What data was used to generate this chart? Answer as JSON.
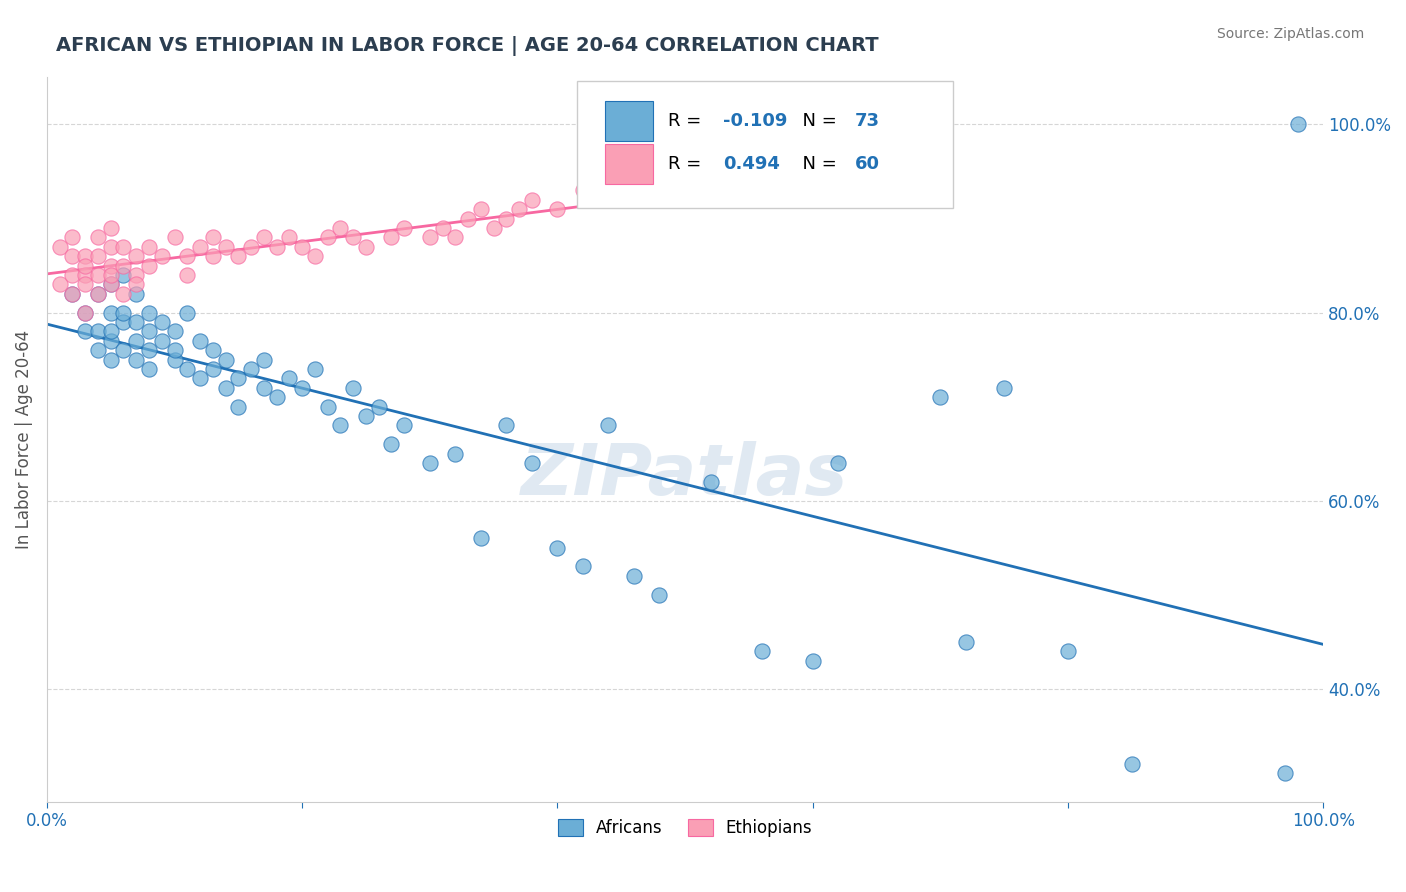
{
  "title": "AFRICAN VS ETHIOPIAN IN LABOR FORCE | AGE 20-64 CORRELATION CHART",
  "source": "Source: ZipAtlas.com",
  "ylabel": "In Labor Force | Age 20-64",
  "xlim": [
    0.0,
    1.0
  ],
  "ylim": [
    0.28,
    1.05
  ],
  "blue_R": "-0.109",
  "blue_N": "73",
  "pink_R": "0.494",
  "pink_N": "60",
  "blue_color": "#6baed6",
  "pink_color": "#fa9fb5",
  "blue_line_color": "#2171b5",
  "pink_line_color": "#f768a1",
  "background_color": "#ffffff",
  "grid_color": "#cccccc",
  "watermark": "ZIPatlas",
  "africans_x": [
    0.02,
    0.03,
    0.03,
    0.04,
    0.04,
    0.04,
    0.05,
    0.05,
    0.05,
    0.05,
    0.05,
    0.06,
    0.06,
    0.06,
    0.06,
    0.07,
    0.07,
    0.07,
    0.07,
    0.08,
    0.08,
    0.08,
    0.08,
    0.09,
    0.09,
    0.1,
    0.1,
    0.1,
    0.11,
    0.11,
    0.12,
    0.12,
    0.13,
    0.13,
    0.14,
    0.14,
    0.15,
    0.15,
    0.16,
    0.17,
    0.17,
    0.18,
    0.19,
    0.2,
    0.21,
    0.22,
    0.23,
    0.24,
    0.25,
    0.26,
    0.27,
    0.28,
    0.3,
    0.32,
    0.34,
    0.36,
    0.38,
    0.4,
    0.42,
    0.44,
    0.46,
    0.48,
    0.52,
    0.56,
    0.6,
    0.62,
    0.7,
    0.72,
    0.75,
    0.8,
    0.85,
    0.97,
    0.98
  ],
  "africans_y": [
    0.82,
    0.8,
    0.78,
    0.78,
    0.76,
    0.82,
    0.77,
    0.8,
    0.78,
    0.75,
    0.83,
    0.79,
    0.76,
    0.8,
    0.84,
    0.77,
    0.75,
    0.79,
    0.82,
    0.78,
    0.76,
    0.8,
    0.74,
    0.77,
    0.79,
    0.75,
    0.78,
    0.76,
    0.74,
    0.8,
    0.73,
    0.77,
    0.74,
    0.76,
    0.72,
    0.75,
    0.73,
    0.7,
    0.74,
    0.72,
    0.75,
    0.71,
    0.73,
    0.72,
    0.74,
    0.7,
    0.68,
    0.72,
    0.69,
    0.7,
    0.66,
    0.68,
    0.64,
    0.65,
    0.56,
    0.68,
    0.64,
    0.55,
    0.53,
    0.68,
    0.52,
    0.5,
    0.62,
    0.44,
    0.43,
    0.64,
    0.71,
    0.45,
    0.72,
    0.44,
    0.32,
    0.31,
    1.0
  ],
  "ethiopians_x": [
    0.01,
    0.01,
    0.02,
    0.02,
    0.02,
    0.02,
    0.03,
    0.03,
    0.03,
    0.03,
    0.03,
    0.04,
    0.04,
    0.04,
    0.04,
    0.05,
    0.05,
    0.05,
    0.05,
    0.05,
    0.06,
    0.06,
    0.06,
    0.07,
    0.07,
    0.07,
    0.08,
    0.08,
    0.09,
    0.1,
    0.11,
    0.11,
    0.12,
    0.13,
    0.13,
    0.14,
    0.15,
    0.16,
    0.17,
    0.18,
    0.19,
    0.2,
    0.21,
    0.22,
    0.23,
    0.24,
    0.25,
    0.27,
    0.28,
    0.3,
    0.31,
    0.32,
    0.33,
    0.34,
    0.35,
    0.36,
    0.37,
    0.38,
    0.4,
    0.42
  ],
  "ethiopians_y": [
    0.87,
    0.83,
    0.88,
    0.86,
    0.84,
    0.82,
    0.86,
    0.84,
    0.85,
    0.83,
    0.8,
    0.84,
    0.82,
    0.86,
    0.88,
    0.83,
    0.85,
    0.87,
    0.89,
    0.84,
    0.85,
    0.87,
    0.82,
    0.84,
    0.86,
    0.83,
    0.85,
    0.87,
    0.86,
    0.88,
    0.84,
    0.86,
    0.87,
    0.86,
    0.88,
    0.87,
    0.86,
    0.87,
    0.88,
    0.87,
    0.88,
    0.87,
    0.86,
    0.88,
    0.89,
    0.88,
    0.87,
    0.88,
    0.89,
    0.88,
    0.89,
    0.88,
    0.9,
    0.91,
    0.89,
    0.9,
    0.91,
    0.92,
    0.91,
    0.93
  ],
  "title_color": "#2c3e50",
  "axis_color": "#2171b5"
}
